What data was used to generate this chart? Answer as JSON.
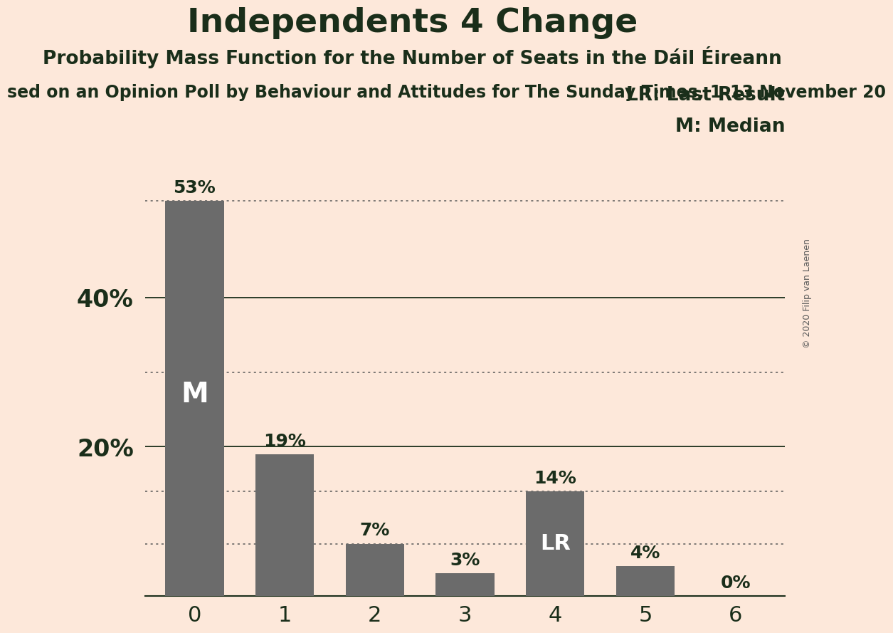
{
  "title": "Independents 4 Change",
  "subtitle": "Probability Mass Function for the Number of Seats in the Dáil Éireann",
  "subtitle2": "sed on an Opinion Poll by Behaviour and Attitudes for The Sunday Times, 1–13 November 20",
  "copyright": "© 2020 Filip van Laenen",
  "categories": [
    0,
    1,
    2,
    3,
    4,
    5,
    6
  ],
  "values": [
    53,
    19,
    7,
    3,
    14,
    4,
    0
  ],
  "bar_color": "#6b6b6b",
  "background_color": "#fde8da",
  "text_color": "#1a2e1a",
  "label_color_white": "#ffffff",
  "median_bar": 0,
  "lr_bar": 4,
  "median_label": "M",
  "lr_label": "LR",
  "legend_lr": "LR: Last Result",
  "legend_m": "M: Median",
  "hlines_solid": [
    20,
    40
  ],
  "hlines_dotted": [
    53,
    30,
    7,
    14
  ],
  "ylim": [
    0,
    60
  ],
  "title_fontsize": 34,
  "subtitle_fontsize": 19,
  "subtitle2_fontsize": 17,
  "legend_fontsize": 19,
  "bar_width": 0.65,
  "ytick_fontsize": 24,
  "xtick_fontsize": 22
}
